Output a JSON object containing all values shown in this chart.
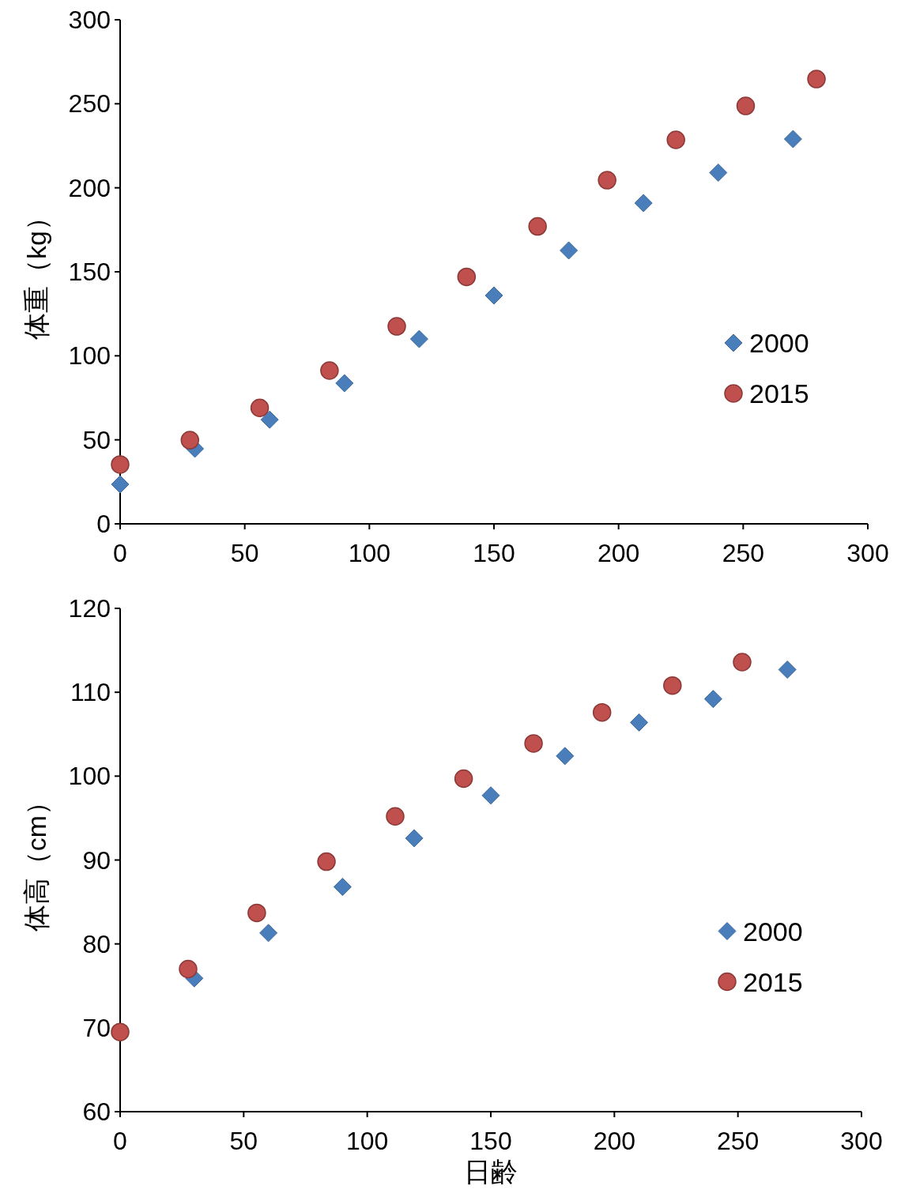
{
  "chart_data": [
    {
      "type": "scatter",
      "ylabel": "体重（kg）",
      "xlim": [
        0,
        300
      ],
      "ylim": [
        0,
        300
      ],
      "xticks": [
        0,
        50,
        100,
        150,
        200,
        250,
        300
      ],
      "yticks": [
        0,
        50,
        100,
        150,
        200,
        250,
        300
      ],
      "legend": "right",
      "series": [
        {
          "name": "2000",
          "color": "#4a7ebb",
          "marker": "diamond",
          "x": [
            0,
            30,
            60,
            90,
            120,
            150,
            180,
            210,
            240,
            270
          ],
          "values": [
            23.5,
            44.7,
            62,
            83.7,
            110,
            135.9,
            162.7,
            190.9,
            209,
            229
          ]
        },
        {
          "name": "2015",
          "color": "#c0504d",
          "marker": "circle",
          "x": [
            0,
            28,
            56,
            84,
            111,
            139,
            167.5,
            195.4,
            223,
            251,
            279.4
          ],
          "values": [
            35.3,
            49.8,
            69,
            91.2,
            117.5,
            147,
            177,
            204.5,
            228.5,
            248.7,
            264.7
          ]
        }
      ]
    },
    {
      "type": "scatter",
      "ylabel": "体高（cm）",
      "xlabel": "日齢",
      "xlim": [
        0,
        300
      ],
      "ylim": [
        60,
        120
      ],
      "xticks": [
        0,
        50,
        100,
        150,
        200,
        250,
        300
      ],
      "yticks": [
        60,
        70,
        80,
        90,
        100,
        110,
        120
      ],
      "legend": "right",
      "series": [
        {
          "name": "2000",
          "color": "#4a7ebb",
          "marker": "diamond",
          "x": [
            30,
            60,
            90,
            119,
            150,
            180,
            210,
            240,
            270
          ],
          "values": [
            75.9,
            81.3,
            86.8,
            92.6,
            97.7,
            102.4,
            106.4,
            109.2,
            112.7
          ]
        },
        {
          "name": "2015",
          "color": "#c0504d",
          "marker": "circle",
          "x": [
            0,
            27.5,
            55.3,
            83.5,
            111.3,
            139,
            167.3,
            195,
            223.5,
            251.7
          ],
          "values": [
            69.5,
            77,
            83.7,
            89.8,
            95.2,
            99.7,
            103.9,
            107.6,
            110.8,
            113.6
          ]
        }
      ]
    }
  ]
}
